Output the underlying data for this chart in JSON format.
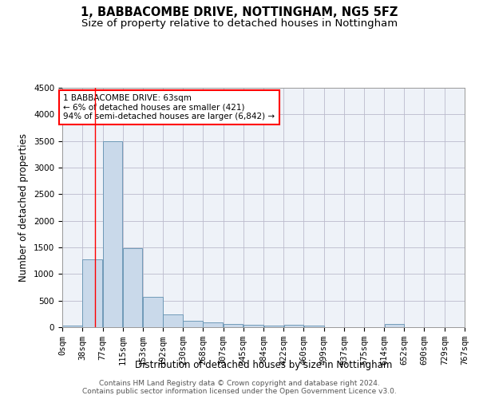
{
  "title": "1, BABBACOMBE DRIVE, NOTTINGHAM, NG5 5FZ",
  "subtitle": "Size of property relative to detached houses in Nottingham",
  "xlabel": "Distribution of detached houses by size in Nottingham",
  "ylabel": "Number of detached properties",
  "bar_color": "#c9d9ea",
  "bar_edge_color": "#6090b0",
  "grid_color": "#bbbbcc",
  "bg_color": "#eef2f8",
  "vline_x": 63,
  "vline_color": "red",
  "annotation_text": "1 BABBACOMBE DRIVE: 63sqm\n← 6% of detached houses are smaller (421)\n94% of semi-detached houses are larger (6,842) →",
  "annotation_box_color": "white",
  "annotation_border_color": "red",
  "bin_edges": [
    0,
    38,
    77,
    115,
    153,
    192,
    230,
    268,
    307,
    345,
    384,
    422,
    460,
    499,
    537,
    575,
    614,
    652,
    690,
    729,
    767
  ],
  "bar_heights": [
    30,
    1270,
    3490,
    1480,
    575,
    240,
    115,
    85,
    60,
    45,
    35,
    40,
    30,
    0,
    0,
    0,
    55,
    0,
    0,
    0
  ],
  "ylim": [
    0,
    4500
  ],
  "yticks": [
    0,
    500,
    1000,
    1500,
    2000,
    2500,
    3000,
    3500,
    4000,
    4500
  ],
  "footer_text": "Contains HM Land Registry data © Crown copyright and database right 2024.\nContains public sector information licensed under the Open Government Licence v3.0.",
  "title_fontsize": 10.5,
  "subtitle_fontsize": 9.5,
  "axis_label_fontsize": 8.5,
  "tick_fontsize": 7.5,
  "footer_fontsize": 6.5
}
